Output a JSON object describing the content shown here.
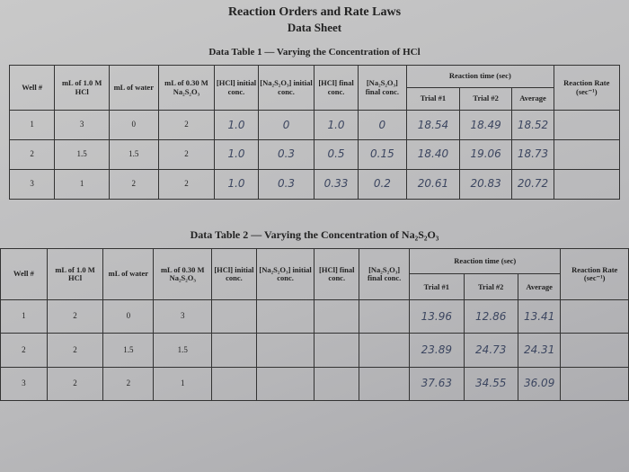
{
  "header": {
    "title": "Reaction Orders and Rate Laws",
    "subtitle": "Data Sheet"
  },
  "table1": {
    "title": "Data Table 1 — Varying the Concentration of HCl",
    "columns": [
      "Well #",
      "mL of 1.0 M HCl",
      "mL of water",
      "mL of 0.30 M Na₂S₂O₃",
      "[HCl] initial conc.",
      "[Na₂S₂O₃] initial conc.",
      "[HCl] final conc.",
      "[Na₂S₂O₃] final conc."
    ],
    "group": {
      "label": "Reaction time (sec)",
      "columns": [
        "Trial #1",
        "Trial #2",
        "Average"
      ]
    },
    "rate_column": "Reaction Rate (sec⁻¹)",
    "rows": [
      [
        "1",
        "3",
        "0",
        "2",
        "1.0",
        "0",
        "1.0",
        "0",
        "18.54",
        "18.49",
        "18.52",
        null
      ],
      [
        "2",
        "1.5",
        "1.5",
        "2",
        "1.0",
        "0.3",
        "0.5",
        "0.15",
        "18.40",
        "19.06",
        "18.73",
        null
      ],
      [
        "3",
        "1",
        "2",
        "2",
        "1.0",
        "0.3",
        "0.33",
        "0.2",
        "20.61",
        "20.83",
        "20.72",
        null
      ]
    ]
  },
  "table2": {
    "title": "Data Table 2 — Varying the Concentration of Na₂S₂O₃",
    "columns": [
      "Well #",
      "mL of 1.0 M HCl",
      "mL of water",
      "mL of 0.30 M Na₂S₂O₃",
      "[HCl] initial conc.",
      "[Na₂S₂O₃] initial conc.",
      "[HCl] final conc.",
      "[Na₂S₂O₃] final conc."
    ],
    "group": {
      "label": "Reaction time (sec)",
      "columns": [
        "Trial #1",
        "Trial #2",
        "Average"
      ]
    },
    "rate_column": "Reaction Rate (sec⁻¹)",
    "rows": [
      [
        "1",
        "2",
        "0",
        "3",
        null,
        null,
        null,
        null,
        "13.96",
        "12.86",
        "13.41",
        null
      ],
      [
        "2",
        "2",
        "1.5",
        "1.5",
        null,
        null,
        null,
        null,
        "23.89",
        "24.73",
        "24.31",
        null
      ],
      [
        "3",
        "2",
        "2",
        "1",
        null,
        null,
        null,
        null,
        "37.63",
        "34.55",
        "36.09",
        null
      ]
    ]
  }
}
